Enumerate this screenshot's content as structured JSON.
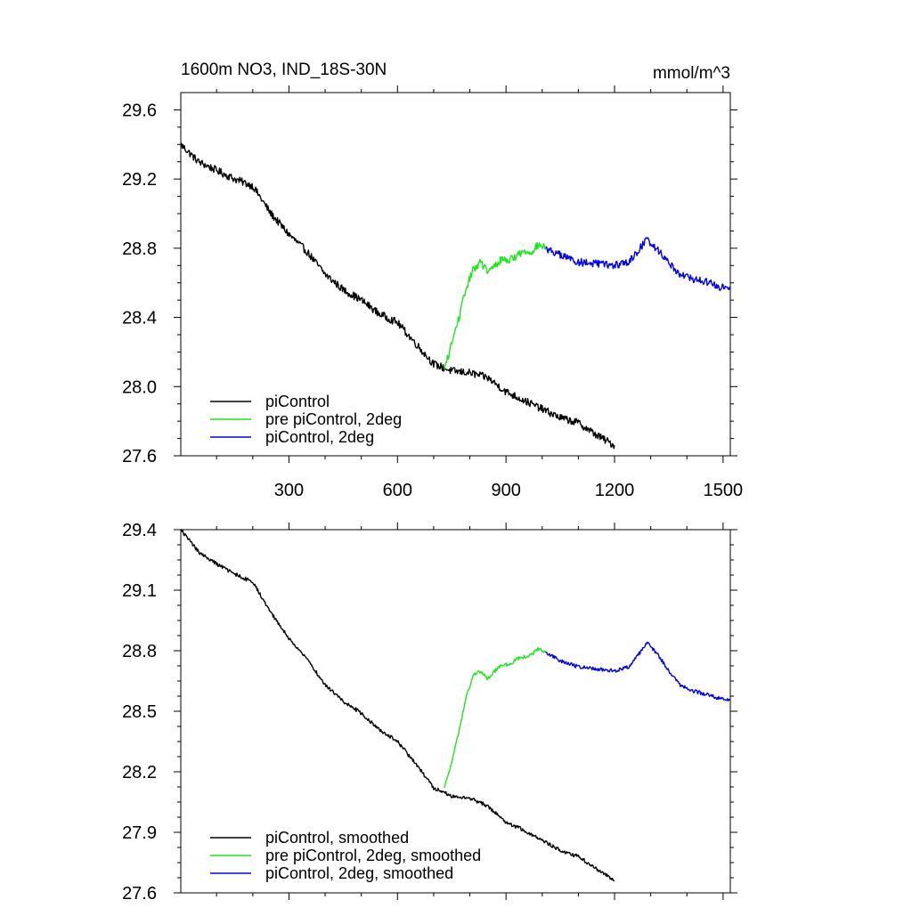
{
  "chart_data": [
    {
      "type": "line",
      "title": "1600m NO3, IND_18S-30N",
      "units": "mmol/m^3",
      "xlim": [
        1,
        1520
      ],
      "ylim": [
        27.6,
        29.7
      ],
      "x_ticks": [
        300,
        600,
        900,
        1200,
        1500
      ],
      "y_ticks": [
        27.6,
        28.0,
        28.4,
        28.8,
        29.2,
        29.6
      ],
      "y_tick_labels": [
        "27.6",
        "28.0",
        "28.4",
        "28.8",
        "29.2",
        "29.6"
      ],
      "legend_position": "bottom-left",
      "series": [
        {
          "name": "piControl",
          "color": "#000000",
          "points": [
            [
              1,
              29.4
            ],
            [
              50,
              29.3
            ],
            [
              100,
              29.25
            ],
            [
              150,
              29.2
            ],
            [
              200,
              29.16
            ],
            [
              250,
              29.0
            ],
            [
              300,
              28.88
            ],
            [
              350,
              28.78
            ],
            [
              400,
              28.65
            ],
            [
              450,
              28.56
            ],
            [
              500,
              28.5
            ],
            [
              550,
              28.42
            ],
            [
              600,
              28.37
            ],
            [
              650,
              28.25
            ],
            [
              700,
              28.13
            ],
            [
              750,
              28.09
            ],
            [
              800,
              28.08
            ],
            [
              850,
              28.05
            ],
            [
              900,
              27.97
            ],
            [
              950,
              27.92
            ],
            [
              1000,
              27.87
            ],
            [
              1050,
              27.82
            ],
            [
              1100,
              27.79
            ],
            [
              1150,
              27.72
            ],
            [
              1200,
              27.66
            ]
          ]
        },
        {
          "name": "pre piControl, 2deg",
          "color": "#1ee61e",
          "points": [
            [
              730,
              28.1
            ],
            [
              750,
              28.25
            ],
            [
              770,
              28.4
            ],
            [
              790,
              28.57
            ],
            [
              810,
              28.68
            ],
            [
              830,
              28.72
            ],
            [
              850,
              28.66
            ],
            [
              870,
              28.7
            ],
            [
              890,
              28.74
            ],
            [
              910,
              28.73
            ],
            [
              930,
              28.76
            ],
            [
              950,
              28.78
            ],
            [
              970,
              28.78
            ],
            [
              990,
              28.82
            ],
            [
              1010,
              28.8
            ]
          ]
        },
        {
          "name": "piControl, 2deg",
          "color": "#0000e6",
          "points": [
            [
              1010,
              28.8
            ],
            [
              1050,
              28.76
            ],
            [
              1100,
              28.72
            ],
            [
              1150,
              28.71
            ],
            [
              1200,
              28.7
            ],
            [
              1240,
              28.72
            ],
            [
              1270,
              28.8
            ],
            [
              1290,
              28.85
            ],
            [
              1320,
              28.79
            ],
            [
              1350,
              28.72
            ],
            [
              1380,
              28.65
            ],
            [
              1420,
              28.62
            ],
            [
              1460,
              28.6
            ],
            [
              1500,
              28.57
            ],
            [
              1520,
              28.56
            ]
          ]
        }
      ]
    },
    {
      "type": "line",
      "xlim": [
        1,
        1520
      ],
      "ylim": [
        27.6,
        29.4
      ],
      "x_ticks": [
        300,
        600,
        900,
        1200,
        1500
      ],
      "y_ticks": [
        27.6,
        27.9,
        28.2,
        28.5,
        28.8,
        29.1,
        29.4
      ],
      "y_tick_labels": [
        "27.6",
        "27.9",
        "28.2",
        "28.5",
        "28.8",
        "29.1",
        "29.4"
      ],
      "legend_position": "bottom-left",
      "series": [
        {
          "name": "piControl, smoothed",
          "color": "#000000",
          "points": [
            [
              1,
              29.4
            ],
            [
              50,
              29.29
            ],
            [
              100,
              29.23
            ],
            [
              150,
              29.18
            ],
            [
              200,
              29.14
            ],
            [
              250,
              28.99
            ],
            [
              300,
              28.86
            ],
            [
              350,
              28.76
            ],
            [
              400,
              28.63
            ],
            [
              450,
              28.55
            ],
            [
              500,
              28.49
            ],
            [
              550,
              28.41
            ],
            [
              600,
              28.35
            ],
            [
              650,
              28.24
            ],
            [
              700,
              28.12
            ],
            [
              750,
              28.08
            ],
            [
              800,
              28.07
            ],
            [
              850,
              28.03
            ],
            [
              900,
              27.95
            ],
            [
              950,
              27.91
            ],
            [
              1000,
              27.86
            ],
            [
              1050,
              27.81
            ],
            [
              1100,
              27.78
            ],
            [
              1150,
              27.72
            ],
            [
              1200,
              27.66
            ]
          ]
        },
        {
          "name": "pre piControl, 2deg, smoothed",
          "color": "#1ee61e",
          "points": [
            [
              730,
              28.12
            ],
            [
              750,
              28.25
            ],
            [
              770,
              28.4
            ],
            [
              790,
              28.57
            ],
            [
              810,
              28.68
            ],
            [
              830,
              28.7
            ],
            [
              850,
              28.66
            ],
            [
              870,
              28.7
            ],
            [
              890,
              28.73
            ],
            [
              910,
              28.73
            ],
            [
              930,
              28.76
            ],
            [
              950,
              28.77
            ],
            [
              970,
              28.78
            ],
            [
              990,
              28.81
            ],
            [
              1010,
              28.79
            ]
          ]
        },
        {
          "name": "piControl, 2deg, smoothed",
          "color": "#0000e6",
          "points": [
            [
              1010,
              28.79
            ],
            [
              1050,
              28.75
            ],
            [
              1100,
              28.72
            ],
            [
              1150,
              28.71
            ],
            [
              1200,
              28.7
            ],
            [
              1240,
              28.72
            ],
            [
              1270,
              28.79
            ],
            [
              1290,
              28.84
            ],
            [
              1320,
              28.78
            ],
            [
              1350,
              28.7
            ],
            [
              1380,
              28.63
            ],
            [
              1420,
              28.6
            ],
            [
              1460,
              28.58
            ],
            [
              1500,
              28.56
            ],
            [
              1520,
              28.56
            ]
          ]
        }
      ]
    }
  ]
}
